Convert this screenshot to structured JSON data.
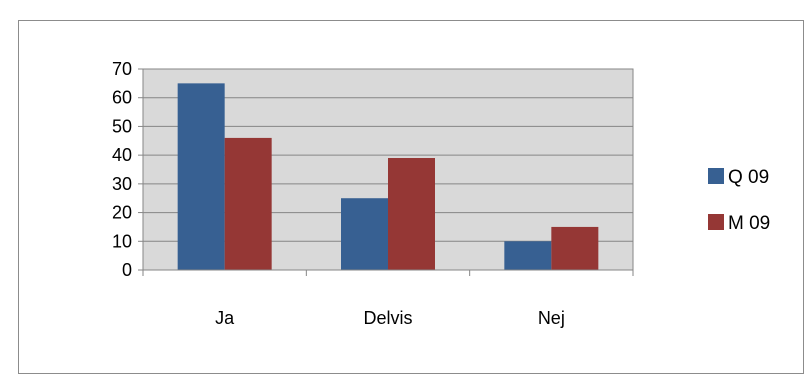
{
  "chart_data": {
    "type": "bar",
    "title": "",
    "xlabel": "",
    "ylabel": "",
    "categories": [
      "Ja",
      "Delvis",
      "Nej"
    ],
    "series": [
      {
        "name": "Q 09",
        "values": [
          65,
          25,
          10
        ],
        "color": "#376092"
      },
      {
        "name": "M 09",
        "values": [
          46,
          39,
          15
        ],
        "color": "#953735"
      }
    ],
    "ylim": [
      0,
      70
    ],
    "yticks": [
      0,
      10,
      20,
      30,
      40,
      50,
      60,
      70
    ],
    "grid": true,
    "plot_background": "#d9d9d9",
    "legend_position": "right"
  }
}
